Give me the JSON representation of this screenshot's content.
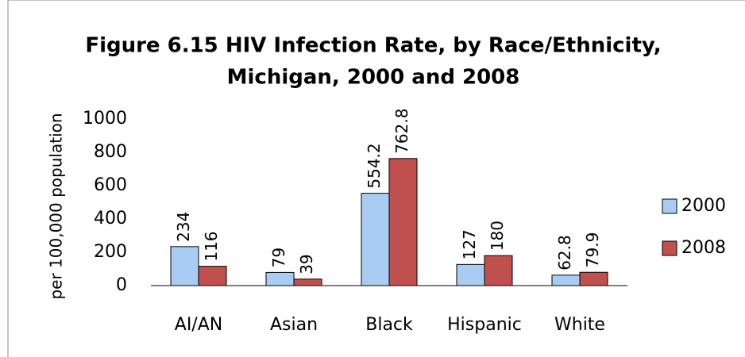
{
  "chart_data": {
    "type": "bar",
    "title": [
      "Figure 6.15  HIV Infection Rate, by Race/Ethnicity,",
      "Michigan, 2000 and 2008"
    ],
    "y_label": "per 100,000 population",
    "categories": [
      "AI/AN",
      "Asian",
      "Black",
      "Hispanic",
      "White"
    ],
    "series": [
      {
        "name": "2000",
        "color": "#a9cdf2",
        "values": [
          234,
          79,
          554.2,
          127,
          62.8
        ]
      },
      {
        "name": "2008",
        "color": "#c0504d",
        "values": [
          116,
          39,
          762.8,
          180,
          79.9
        ]
      }
    ],
    "ylim": [
      0,
      1000
    ],
    "yticks": [
      0,
      200,
      400,
      600,
      800,
      1000
    ],
    "grid": false,
    "legend": "right"
  }
}
